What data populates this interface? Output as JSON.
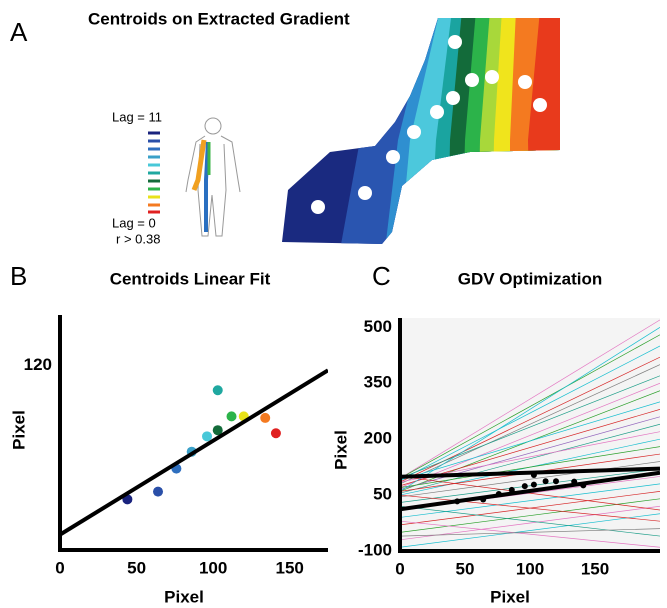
{
  "panel_a": {
    "label": "A",
    "title": "Centroids on Extracted Gradient",
    "legend_top": "Lag = 11",
    "legend_bottom": "Lag = 0",
    "legend_note": "r > 0.38"
  },
  "chart_data": [
    {
      "type": "scatter",
      "label": "B",
      "title": "Centroids Linear Fit",
      "xlabel": "Pixel",
      "ylabel": "Pixel",
      "xlim": [
        0,
        175
      ],
      "ylim": [
        0,
        153
      ],
      "xticks": [
        0,
        50,
        100,
        150
      ],
      "yticks": [
        120
      ],
      "series": [
        {
          "mode": "markers",
          "x": [
            44,
            64,
            76,
            86,
            96,
            103,
            103,
            112,
            120,
            134,
            141
          ],
          "values": [
            33,
            38,
            53,
            64,
            74,
            104,
            78,
            87,
            87,
            86,
            76
          ],
          "colors": [
            "#1a237e",
            "#2a4fa8",
            "#2f6fbf",
            "#3aa0c8",
            "#48c8d8",
            "#1fa8a0",
            "#136b3a",
            "#2cb34a",
            "#e8e21a",
            "#f47a20",
            "#e02020"
          ]
        },
        {
          "mode": "line",
          "color": "#000000",
          "line_width": 4,
          "x": [
            0,
            175
          ],
          "values": [
            10,
            117
          ]
        }
      ]
    },
    {
      "type": "scatter",
      "label": "C",
      "title": "GDV Optimization",
      "xlabel": "Pixel",
      "ylabel": "Pixel",
      "xlim": [
        0,
        200
      ],
      "ylim": [
        -100,
        525
      ],
      "xticks": [
        0,
        50,
        100,
        150
      ],
      "yticks": [
        500,
        350,
        200,
        50,
        -100
      ],
      "series": [
        {
          "mode": "line",
          "color": "#e377c2",
          "line_width": 0.7,
          "x": [
            0,
            200
          ],
          "values": [
            95,
            520
          ]
        },
        {
          "mode": "line",
          "color": "#2ca02c",
          "line_width": 0.7,
          "x": [
            0,
            200
          ],
          "values": [
            95,
            480
          ]
        },
        {
          "mode": "line",
          "color": "#17becf",
          "line_width": 0.7,
          "x": [
            0,
            200
          ],
          "values": [
            90,
            450
          ]
        },
        {
          "mode": "line",
          "color": "#d62728",
          "line_width": 0.7,
          "x": [
            0,
            200
          ],
          "values": [
            85,
            420
          ]
        },
        {
          "mode": "line",
          "color": "#7f7f7f",
          "line_width": 0.7,
          "x": [
            0,
            200
          ],
          "values": [
            80,
            400
          ]
        },
        {
          "mode": "line",
          "color": "#1f9e89",
          "line_width": 0.7,
          "x": [
            0,
            200
          ],
          "values": [
            95,
            370
          ]
        },
        {
          "mode": "line",
          "color": "#e377c2",
          "line_width": 0.7,
          "x": [
            0,
            200
          ],
          "values": [
            70,
            350
          ]
        },
        {
          "mode": "line",
          "color": "#2ca02c",
          "line_width": 0.7,
          "x": [
            0,
            200
          ],
          "values": [
            60,
            330
          ]
        },
        {
          "mode": "line",
          "color": "#17becf",
          "line_width": 0.7,
          "x": [
            0,
            200
          ],
          "values": [
            90,
            300
          ]
        },
        {
          "mode": "line",
          "color": "#d62728",
          "line_width": 0.7,
          "x": [
            0,
            200
          ],
          "values": [
            75,
            280
          ]
        },
        {
          "mode": "line",
          "color": "#9467bd",
          "line_width": 0.7,
          "x": [
            0,
            200
          ],
          "values": [
            65,
            260
          ]
        },
        {
          "mode": "line",
          "color": "#1f9e89",
          "line_width": 0.7,
          "x": [
            0,
            200
          ],
          "values": [
            55,
            240
          ]
        },
        {
          "mode": "line",
          "color": "#e377c2",
          "line_width": 0.7,
          "x": [
            0,
            200
          ],
          "values": [
            85,
            220
          ]
        },
        {
          "mode": "line",
          "color": "#17becf",
          "line_width": 0.7,
          "x": [
            0,
            200
          ],
          "values": [
            50,
            200
          ]
        },
        {
          "mode": "line",
          "color": "#2ca02c",
          "line_width": 0.7,
          "x": [
            0,
            200
          ],
          "values": [
            70,
            180
          ]
        },
        {
          "mode": "line",
          "color": "#d62728",
          "line_width": 0.7,
          "x": [
            0,
            200
          ],
          "values": [
            60,
            160
          ]
        },
        {
          "mode": "line",
          "color": "#7f7f7f",
          "line_width": 0.7,
          "x": [
            0,
            200
          ],
          "values": [
            45,
            140
          ]
        },
        {
          "mode": "line",
          "color": "#1f9e89",
          "line_width": 0.7,
          "x": [
            0,
            200
          ],
          "values": [
            30,
            120
          ]
        },
        {
          "mode": "line",
          "color": "#e377c2",
          "line_width": 0.7,
          "x": [
            0,
            200
          ],
          "values": [
            10,
            100
          ]
        },
        {
          "mode": "line",
          "color": "#17becf",
          "line_width": 0.7,
          "x": [
            0,
            200
          ],
          "values": [
            -10,
            80
          ]
        },
        {
          "mode": "line",
          "color": "#d62728",
          "line_width": 0.7,
          "x": [
            0,
            200
          ],
          "values": [
            -30,
            60
          ]
        },
        {
          "mode": "line",
          "color": "#2ca02c",
          "line_width": 0.7,
          "x": [
            0,
            200
          ],
          "values": [
            -50,
            40
          ]
        },
        {
          "mode": "line",
          "color": "#e377c2",
          "line_width": 0.7,
          "x": [
            0,
            200
          ],
          "values": [
            -70,
            20
          ]
        },
        {
          "mode": "line",
          "color": "#17becf",
          "line_width": 0.7,
          "x": [
            0,
            200
          ],
          "values": [
            -90,
            0
          ]
        },
        {
          "mode": "line",
          "color": "#d62728",
          "line_width": 0.7,
          "x": [
            0,
            200
          ],
          "values": [
            50,
            -20
          ]
        },
        {
          "mode": "line",
          "color": "#1f9e89",
          "line_width": 0.7,
          "x": [
            0,
            200
          ],
          "values": [
            20,
            -60
          ]
        },
        {
          "mode": "line",
          "color": "#e377c2",
          "line_width": 0.7,
          "x": [
            0,
            200
          ],
          "values": [
            -20,
            -90
          ]
        },
        {
          "mode": "line",
          "color": "#d62728",
          "line_width": 0.7,
          "x": [
            0,
            200
          ],
          "values": [
            100,
            10
          ]
        },
        {
          "mode": "line",
          "color": "#7f7f7f",
          "line_width": 0.7,
          "x": [
            0,
            200
          ],
          "values": [
            -60,
            -40
          ]
        },
        {
          "mode": "line",
          "color": "#17becf",
          "line_width": 0.7,
          "x": [
            0,
            200
          ],
          "values": [
            60,
            500
          ]
        },
        {
          "mode": "line",
          "color": "#000000",
          "line_width": 4,
          "x": [
            0,
            200
          ],
          "values": [
            99,
            121
          ]
        },
        {
          "mode": "line",
          "color": "#000000",
          "line_width": 4,
          "x": [
            0,
            200
          ],
          "values": [
            12,
            110
          ]
        },
        {
          "mode": "markers",
          "x": [
            44,
            64,
            76,
            86,
            96,
            103,
            103,
            112,
            120,
            134,
            141
          ],
          "values": [
            33,
            38,
            53,
            64,
            74,
            104,
            78,
            87,
            87,
            86,
            76
          ],
          "colors": [
            "#000000",
            "#000000",
            "#000000",
            "#000000",
            "#000000",
            "#000000",
            "#000000",
            "#000000",
            "#000000",
            "#000000",
            "#000000"
          ]
        }
      ]
    }
  ]
}
